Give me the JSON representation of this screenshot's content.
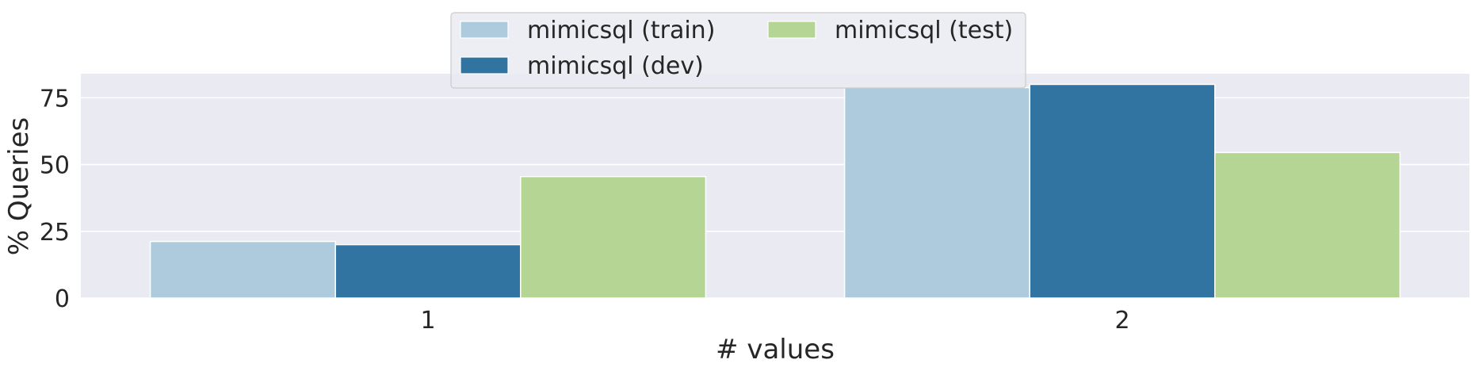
{
  "chart_data": {
    "type": "bar",
    "title": "",
    "xlabel": "# values",
    "ylabel": "% Queries",
    "categories": [
      "1",
      "2"
    ],
    "ylim": [
      0,
      84
    ],
    "yticks": [
      "0",
      "25",
      "50",
      "75"
    ],
    "grid": true,
    "legend_placement": "top-center",
    "series": [
      {
        "name": "mimicsql (train)",
        "color": "#aecbdd",
        "values": [
          21.2,
          78.8
        ]
      },
      {
        "name": "mimicsql (dev)",
        "color": "#3274a1",
        "values": [
          20.0,
          80.0
        ]
      },
      {
        "name": "mimicsql (test)",
        "color": "#b4d593",
        "values": [
          45.5,
          54.5
        ]
      }
    ]
  }
}
